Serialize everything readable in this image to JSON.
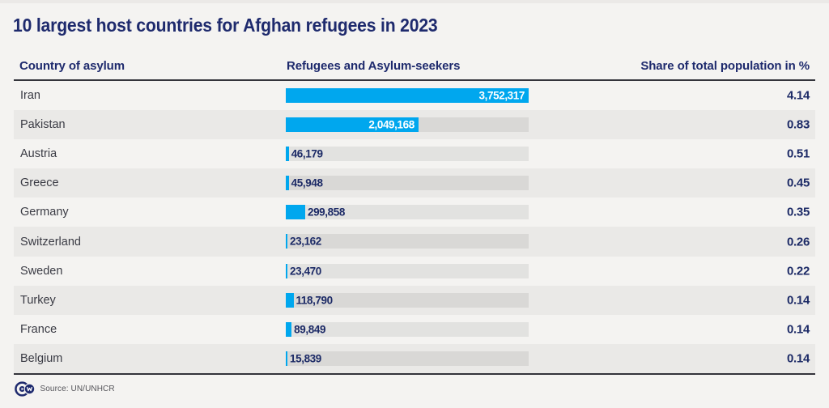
{
  "chart_data": {
    "type": "bar",
    "title": "10 largest host countries for Afghan refugees in 2023",
    "columns": {
      "country": "Country of asylum",
      "refugees": "Refugees and Asylum-seekers",
      "share": "Share of total population in %"
    },
    "rows": [
      {
        "country": "Iran",
        "refugees": 3752317,
        "refugees_label": "3,752,317",
        "share": "4.14"
      },
      {
        "country": "Pakistan",
        "refugees": 2049168,
        "refugees_label": "2,049,168",
        "share": "0.83"
      },
      {
        "country": "Austria",
        "refugees": 46179,
        "refugees_label": "46,179",
        "share": "0.51"
      },
      {
        "country": "Greece",
        "refugees": 45948,
        "refugees_label": "45,948",
        "share": "0.45"
      },
      {
        "country": "Germany",
        "refugees": 299858,
        "refugees_label": "299,858",
        "share": "0.35"
      },
      {
        "country": "Switzerland",
        "refugees": 23162,
        "refugees_label": "23,162",
        "share": "0.26"
      },
      {
        "country": "Sweden",
        "refugees": 23470,
        "refugees_label": "23,470",
        "share": "0.22"
      },
      {
        "country": "Turkey",
        "refugees": 118790,
        "refugees_label": "118,790",
        "share": "0.14"
      },
      {
        "country": "France",
        "refugees": 89849,
        "refugees_label": "89,849",
        "share": "0.14"
      },
      {
        "country": "Belgium",
        "refugees": 15839,
        "refugees_label": "15,839",
        "share": "0.14"
      }
    ],
    "x_max": 3752317,
    "bar_color": "#00a7ee",
    "navy_color": "#1c2a66",
    "source": "Source: UN/UNHCR",
    "logo": "DW"
  }
}
